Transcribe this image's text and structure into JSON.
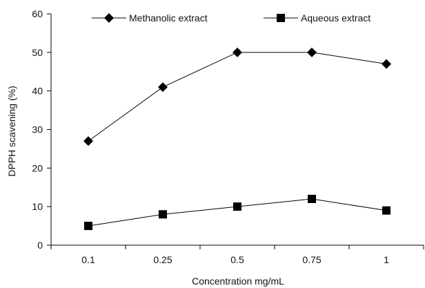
{
  "chart_data": {
    "type": "line",
    "categories": [
      "0.1",
      "0.25",
      "0.5",
      "0.75",
      "1"
    ],
    "series": [
      {
        "name": "Methanolic extract",
        "marker": "diamond",
        "values": [
          27,
          41,
          50,
          50,
          47
        ]
      },
      {
        "name": "Aqueous extract",
        "marker": "square",
        "values": [
          5,
          8,
          10,
          12,
          9
        ]
      }
    ],
    "title": "",
    "xlabel": "Concentration mg/mL",
    "ylabel": "DPPH scavening (%)",
    "ylim": [
      0,
      60
    ],
    "yticks": [
      0,
      10,
      20,
      30,
      40,
      50,
      60
    ],
    "grid": false,
    "legend_position": "top",
    "line_color": "#000000"
  }
}
